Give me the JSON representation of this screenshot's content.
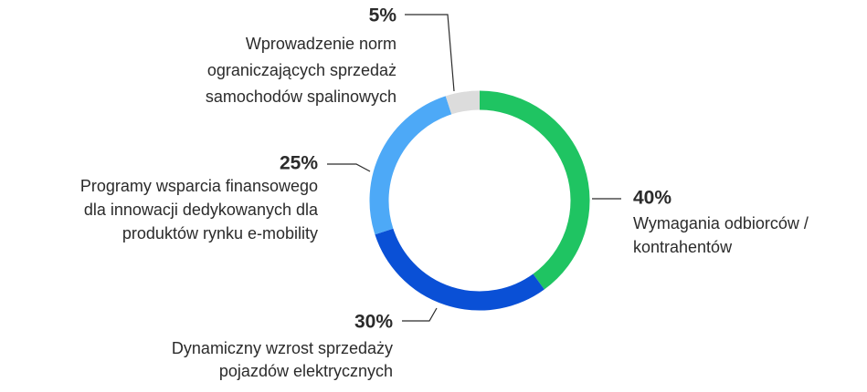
{
  "chart_data": {
    "type": "pie",
    "categories": [
      [
        "Wymagania odbiorców /",
        "kontrahentów"
      ],
      [
        "Dynamiczny wzrost sprzedaży",
        "pojazdów elektrycznych"
      ],
      [
        "Programy wsparcia finansowego",
        "dla innowacji dedykowanych dla",
        "produktów rynku e-mobility"
      ],
      [
        "Wprowadzenie norm",
        "ograniczających sprzedaż",
        "samochodów spalinowych"
      ]
    ],
    "values": [
      40,
      30,
      25,
      5
    ],
    "value_labels": [
      "40%",
      "30%",
      "25%",
      "5%"
    ],
    "colors": [
      "#1fc462",
      "#0a50d6",
      "#4da9f7",
      "#dcdcdc"
    ]
  }
}
